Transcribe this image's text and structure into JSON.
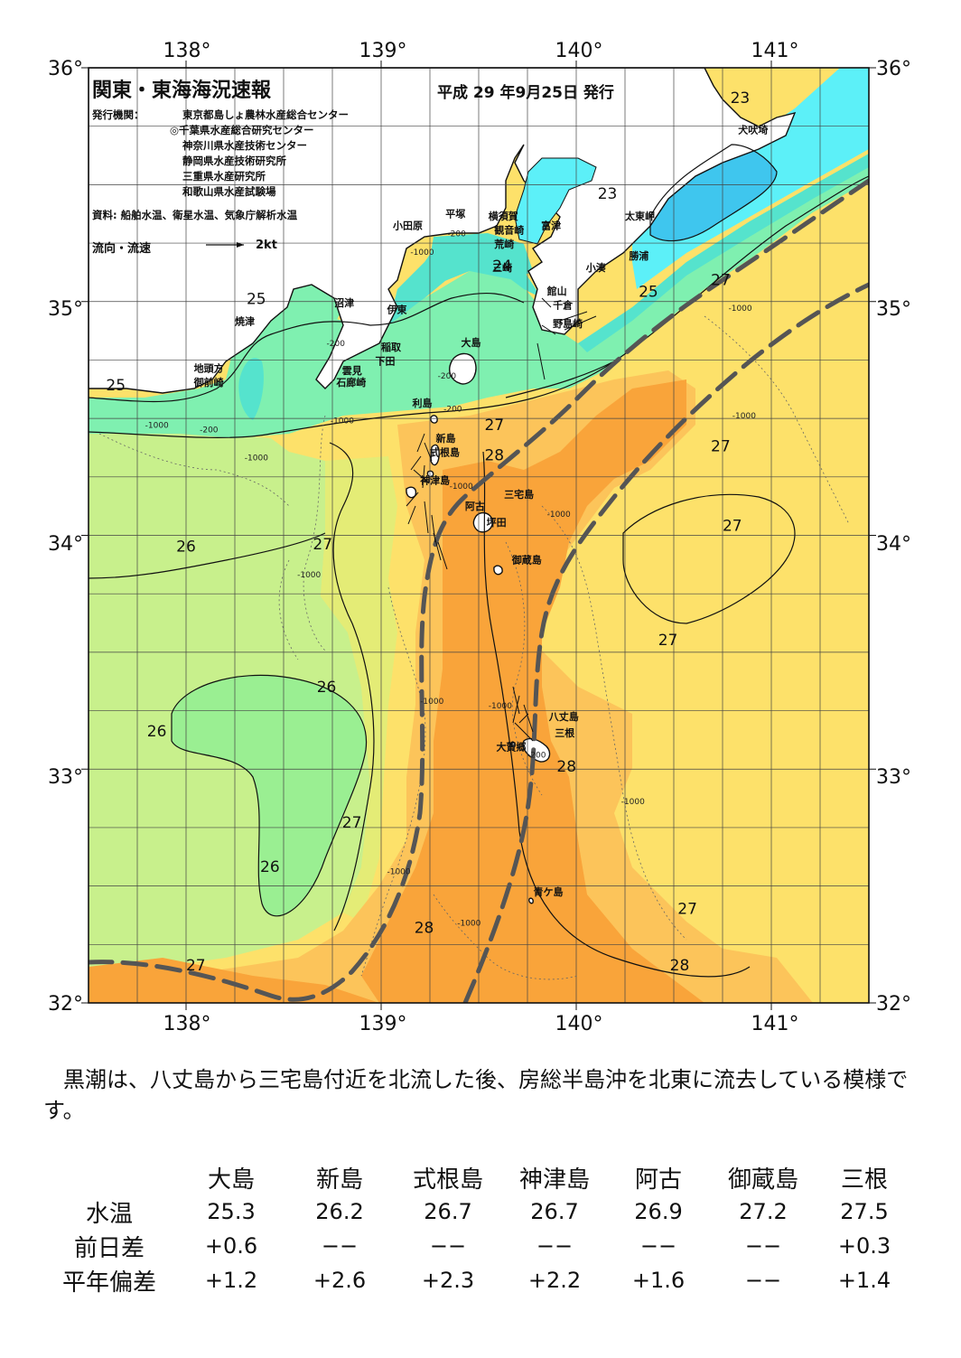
{
  "header": {
    "title": "関東・東海海況速報",
    "date": "平成 29 年9月25日 発行"
  },
  "issuers": {
    "label": "発行機関：",
    "list": [
      "東京都島しょ農林水産総合センター",
      "◎千葉県水産総合研究センター",
      "神奈川県水産技術センター",
      "静岡県水産技術研究所",
      "三重県水産研究所",
      "和歌山県水産試験場"
    ]
  },
  "source": "資料: 船舶水温、衛星水温、気象庁解析水温",
  "flow_legend": {
    "label": "流向・流速",
    "unit": "2kt"
  },
  "axes": {
    "lon": [
      "138°",
      "139°",
      "140°",
      "141°"
    ],
    "lat": [
      "36°",
      "35°",
      "34°",
      "33°",
      "32°"
    ]
  },
  "places": [
    {
      "name": "犬吠埼",
      "lon": 140.83,
      "lat": 35.72
    },
    {
      "name": "太東岬",
      "lon": 140.25,
      "lat": 35.35
    },
    {
      "name": "勝浦",
      "lon": 140.27,
      "lat": 35.18
    },
    {
      "name": "小湊",
      "lon": 140.05,
      "lat": 35.13
    },
    {
      "name": "富津",
      "lon": 139.82,
      "lat": 35.31
    },
    {
      "name": "横須賀",
      "lon": 139.55,
      "lat": 35.35
    },
    {
      "name": "平塚",
      "lon": 139.33,
      "lat": 35.36
    },
    {
      "name": "小田原",
      "lon": 139.06,
      "lat": 35.31
    },
    {
      "name": "観音崎",
      "lon": 139.58,
      "lat": 35.29
    },
    {
      "name": "荒崎",
      "lon": 139.58,
      "lat": 35.23
    },
    {
      "name": "三崎",
      "lon": 139.57,
      "lat": 35.13
    },
    {
      "name": "館山",
      "lon": 139.85,
      "lat": 35.03
    },
    {
      "name": "千倉",
      "lon": 139.88,
      "lat": 34.97
    },
    {
      "name": "野島崎",
      "lon": 139.88,
      "lat": 34.89
    },
    {
      "name": "大島",
      "lon": 139.41,
      "lat": 34.81
    },
    {
      "name": "沼津",
      "lon": 138.76,
      "lat": 34.98
    },
    {
      "name": "伊東",
      "lon": 139.03,
      "lat": 34.95
    },
    {
      "name": "焼津",
      "lon": 138.25,
      "lat": 34.9
    },
    {
      "name": "稲取",
      "lon": 139.0,
      "lat": 34.79
    },
    {
      "name": "下田",
      "lon": 138.97,
      "lat": 34.73
    },
    {
      "name": "雲見",
      "lon": 138.8,
      "lat": 34.69
    },
    {
      "name": "石廊崎",
      "lon": 138.77,
      "lat": 34.64
    },
    {
      "name": "地頭方",
      "lon": 138.04,
      "lat": 34.7
    },
    {
      "name": "御前崎",
      "lon": 138.04,
      "lat": 34.64
    },
    {
      "name": "利島",
      "lon": 139.16,
      "lat": 34.55
    },
    {
      "name": "新島",
      "lon": 139.28,
      "lat": 34.4
    },
    {
      "name": "式根島",
      "lon": 139.25,
      "lat": 34.34
    },
    {
      "name": "神津島",
      "lon": 139.2,
      "lat": 34.22
    },
    {
      "name": "三宅島",
      "lon": 139.63,
      "lat": 34.16
    },
    {
      "name": "阿古",
      "lon": 139.43,
      "lat": 34.11
    },
    {
      "name": "坪田",
      "lon": 139.54,
      "lat": 34.04
    },
    {
      "name": "御蔵島",
      "lon": 139.67,
      "lat": 33.88
    },
    {
      "name": "八丈島",
      "lon": 139.86,
      "lat": 33.21
    },
    {
      "name": "三根",
      "lon": 139.89,
      "lat": 33.14
    },
    {
      "name": "大賀郷",
      "lon": 139.59,
      "lat": 33.08
    },
    {
      "name": "青ケ島",
      "lon": 139.78,
      "lat": 32.46
    }
  ],
  "isotherm_labels": [
    {
      "text": "23",
      "lon": 140.84,
      "lat": 35.85
    },
    {
      "text": "23",
      "lon": 140.16,
      "lat": 35.44
    },
    {
      "text": "24",
      "lon": 139.62,
      "lat": 35.13
    },
    {
      "text": "25",
      "lon": 140.37,
      "lat": 35.02
    },
    {
      "text": "27",
      "lon": 140.74,
      "lat": 35.07
    },
    {
      "text": "25",
      "lon": 138.36,
      "lat": 34.99
    },
    {
      "text": "25",
      "lon": 137.64,
      "lat": 34.62
    },
    {
      "text": "27",
      "lon": 139.58,
      "lat": 34.45
    },
    {
      "text": "28",
      "lon": 139.58,
      "lat": 34.32
    },
    {
      "text": "27",
      "lon": 140.74,
      "lat": 34.36
    },
    {
      "text": "27",
      "lon": 140.8,
      "lat": 34.02
    },
    {
      "text": "26",
      "lon": 138.0,
      "lat": 33.93
    },
    {
      "text": "27",
      "lon": 138.7,
      "lat": 33.94
    },
    {
      "text": "27",
      "lon": 140.47,
      "lat": 33.53
    },
    {
      "text": "26",
      "lon": 138.72,
      "lat": 33.33
    },
    {
      "text": "26",
      "lon": 137.85,
      "lat": 33.14
    },
    {
      "text": "28",
      "lon": 139.95,
      "lat": 32.99
    },
    {
      "text": "27",
      "lon": 138.85,
      "lat": 32.75
    },
    {
      "text": "26",
      "lon": 138.43,
      "lat": 32.56
    },
    {
      "text": "27",
      "lon": 140.57,
      "lat": 32.38
    },
    {
      "text": "28",
      "lon": 139.22,
      "lat": 32.3
    },
    {
      "text": "27",
      "lon": 138.05,
      "lat": 32.14
    },
    {
      "text": "28",
      "lon": 140.53,
      "lat": 32.14
    }
  ],
  "depth_labels": [
    {
      "text": "-200",
      "lon": 139.34,
      "lat": 35.28
    },
    {
      "text": "-1000",
      "lon": 139.15,
      "lat": 35.2
    },
    {
      "text": "-200",
      "lon": 138.72,
      "lat": 34.81
    },
    {
      "text": "-200",
      "lon": 139.29,
      "lat": 34.67
    },
    {
      "text": "-200",
      "lon": 139.32,
      "lat": 34.53
    },
    {
      "text": "-1000",
      "lon": 138.74,
      "lat": 34.48
    },
    {
      "text": "-1000",
      "lon": 137.79,
      "lat": 34.46
    },
    {
      "text": "-200",
      "lon": 138.07,
      "lat": 34.44
    },
    {
      "text": "-1000",
      "lon": 138.3,
      "lat": 34.32
    },
    {
      "text": "-1000",
      "lon": 139.85,
      "lat": 34.08
    },
    {
      "text": "-1000",
      "lon": 138.57,
      "lat": 33.82
    },
    {
      "text": "-1000",
      "lon": 140.78,
      "lat": 34.96
    },
    {
      "text": "-1000",
      "lon": 140.8,
      "lat": 34.5
    },
    {
      "text": "-1000",
      "lon": 139.2,
      "lat": 33.28
    },
    {
      "text": "-1000",
      "lon": 139.55,
      "lat": 33.26
    },
    {
      "text": "-1000",
      "lon": 139.35,
      "lat": 34.2
    },
    {
      "text": "-1000",
      "lon": 140.23,
      "lat": 32.85
    },
    {
      "text": "-200",
      "lon": 139.75,
      "lat": 33.05
    },
    {
      "text": "-1000",
      "lon": 139.03,
      "lat": 32.55
    },
    {
      "text": "-1000",
      "lon": 139.39,
      "lat": 32.33
    }
  ],
  "comment": "黒潮は、八丈島から三宅島付近を北流した後、房総半島沖を北東に流去している模様です。",
  "table": {
    "stations": [
      "大島",
      "新島",
      "式根島",
      "神津島",
      "阿古",
      "御蔵島",
      "三根"
    ],
    "rows": [
      {
        "label": "水温",
        "values": [
          "25.3",
          "26.2",
          "26.7",
          "26.7",
          "26.9",
          "27.2",
          "27.5"
        ]
      },
      {
        "label": "前日差",
        "values": [
          "+0.6",
          "−−",
          "−−",
          "−−",
          "−−",
          "−−",
          "+0.3"
        ]
      },
      {
        "label": "平年偏差",
        "values": [
          "+1.2",
          "+2.6",
          "+2.3",
          "+2.2",
          "+1.6",
          "−−",
          "+1.4"
        ]
      }
    ]
  },
  "colors": {
    "t23": "#5cf0f8",
    "t24": "#66ddee",
    "t25": "#7ff0b0",
    "t26": "#c8f08c",
    "t27": "#fde16a",
    "t27_5": "#fcc45a",
    "t28": "#f9a43a",
    "kuroshio": "#555555"
  }
}
